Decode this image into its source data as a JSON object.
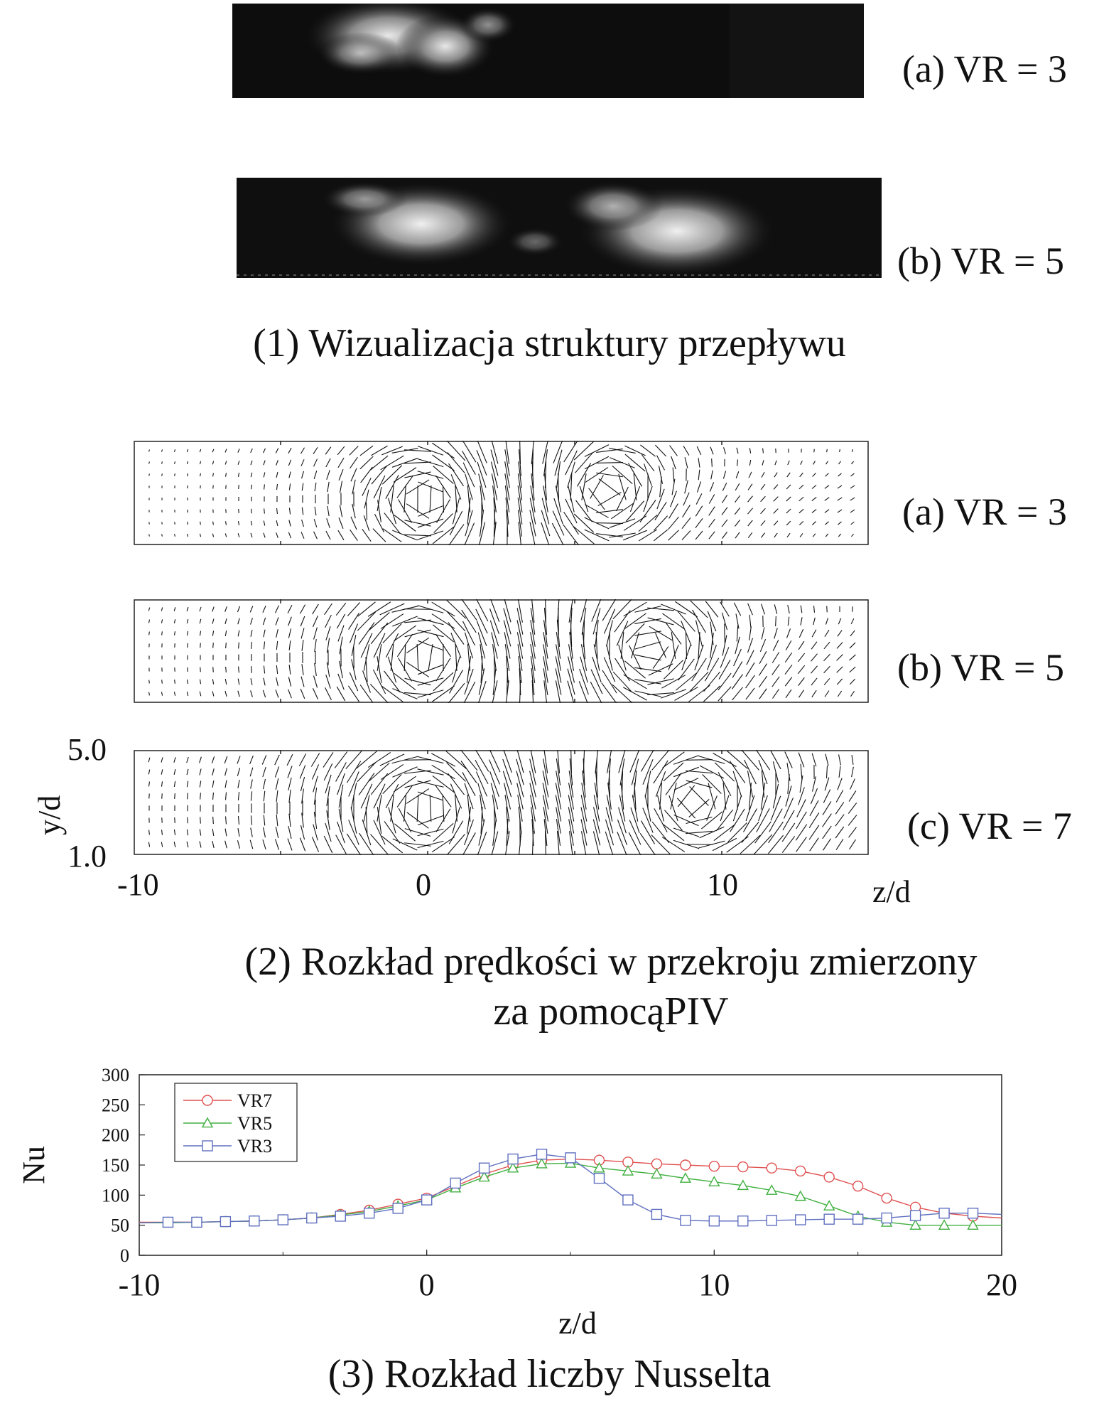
{
  "section1": {
    "panel_a_label": "(a) VR = 3",
    "panel_b_label": "(b) VR = 5",
    "caption": "(1) Wizualizacja struktury przepływu"
  },
  "section2": {
    "panel_a_label": "(a) VR = 3",
    "panel_b_label": "(b) VR = 5",
    "panel_c_label": "(c) VR = 7",
    "y_axis_label": "y/d",
    "y_tick_top": "5.0",
    "y_tick_bottom": "1.0",
    "x_ticks": [
      "-10",
      "0",
      "10"
    ],
    "x_axis_label": "z/d",
    "caption_line1": "(2) Rozkład prędkości w przekroju zmierzony",
    "caption_line2": "za pomocąPIV"
  },
  "section3": {
    "caption": "(3) Rozkład liczby Nusselta"
  },
  "chart_data": {
    "type": "line",
    "title": "",
    "xlabel": "z/d",
    "ylabel": "Nu",
    "xlim": [
      -10,
      20
    ],
    "ylim": [
      0,
      300
    ],
    "x_ticks": [
      "-10",
      "0",
      "10",
      "20"
    ],
    "y_ticks": [
      "300",
      "250",
      "200",
      "150",
      "100",
      "50",
      "0"
    ],
    "legend_position": "top-left",
    "series": [
      {
        "name": "VR7",
        "color": "#e05050",
        "marker": "circle",
        "x": [
          -10,
          -9,
          -8,
          -7,
          -6,
          -5,
          -4,
          -3,
          -2,
          -1,
          0,
          1,
          2,
          3,
          4,
          5,
          6,
          7,
          8,
          9,
          10,
          11,
          12,
          13,
          14,
          15,
          16,
          17,
          18,
          19,
          20
        ],
        "y": [
          55,
          55,
          55,
          56,
          57,
          59,
          62,
          68,
          75,
          85,
          95,
          115,
          135,
          150,
          158,
          160,
          158,
          155,
          152,
          150,
          148,
          147,
          145,
          140,
          130,
          115,
          95,
          80,
          70,
          65,
          62
        ]
      },
      {
        "name": "VR5",
        "color": "#40b040",
        "marker": "triangle",
        "x": [
          -10,
          -9,
          -8,
          -7,
          -6,
          -5,
          -4,
          -3,
          -2,
          -1,
          0,
          1,
          2,
          3,
          4,
          5,
          6,
          7,
          8,
          9,
          10,
          11,
          12,
          13,
          14,
          15,
          16,
          17,
          18,
          19,
          20
        ],
        "y": [
          54,
          54,
          55,
          56,
          57,
          59,
          62,
          67,
          73,
          82,
          92,
          112,
          130,
          145,
          152,
          153,
          145,
          140,
          135,
          128,
          122,
          116,
          108,
          98,
          82,
          65,
          55,
          50,
          50,
          50,
          50
        ]
      },
      {
        "name": "VR3",
        "color": "#6070c0",
        "marker": "square",
        "x": [
          -10,
          -9,
          -8,
          -7,
          -6,
          -5,
          -4,
          -3,
          -2,
          -1,
          0,
          1,
          2,
          3,
          4,
          5,
          6,
          7,
          8,
          9,
          10,
          11,
          12,
          13,
          14,
          15,
          16,
          17,
          18,
          19,
          20
        ],
        "y": [
          54,
          55,
          55,
          56,
          57,
          59,
          62,
          65,
          70,
          78,
          92,
          120,
          145,
          160,
          168,
          162,
          128,
          92,
          68,
          58,
          57,
          57,
          58,
          59,
          60,
          60,
          62,
          66,
          70,
          70,
          68
        ]
      }
    ]
  }
}
